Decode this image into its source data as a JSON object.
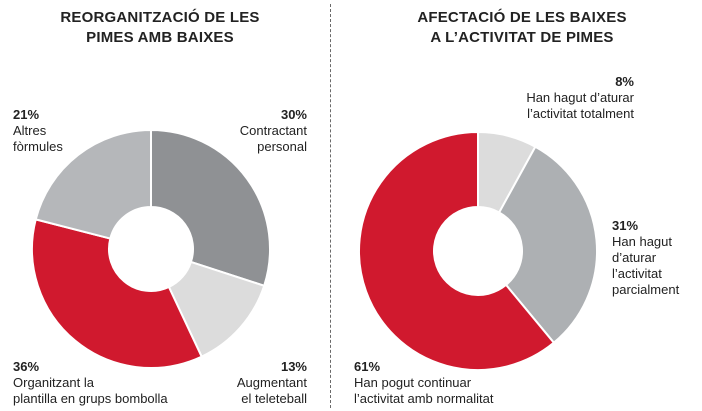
{
  "chart_data": [
    {
      "type": "pie",
      "variant": "donut",
      "title_lines": [
        "REORGANITZACIÓ DE LES",
        "PIMES AMB BAIXES"
      ],
      "slices": [
        {
          "label_lines": [
            "Contractant",
            "personal"
          ],
          "value": 30,
          "pct_label": "30%",
          "color": "#8f9194"
        },
        {
          "label_lines": [
            "Augmentant",
            "el teleteball"
          ],
          "value": 13,
          "pct_label": "13%",
          "color": "#dcdcdc"
        },
        {
          "label_lines": [
            "Organitzant la",
            "plantilla en grups bombolla"
          ],
          "value": 36,
          "pct_label": "36%",
          "color": "#d0192e"
        },
        {
          "label_lines": [
            "Altres",
            "fòrmules"
          ],
          "value": 21,
          "pct_label": "21%",
          "color": "#b5b7ba"
        }
      ]
    },
    {
      "type": "pie",
      "variant": "donut",
      "title_lines": [
        "AFECTACIÓ DE LES BAIXES",
        "A L’ACTIVITAT DE PIMES"
      ],
      "slices": [
        {
          "label_lines": [
            "Han hagut d’aturar",
            "l’activitat totalment"
          ],
          "value": 8,
          "pct_label": "8%",
          "color": "#dcdcdc"
        },
        {
          "label_lines": [
            "Han hagut",
            "d’aturar",
            "l’activitat",
            "parcialment"
          ],
          "value": 31,
          "pct_label": "31%",
          "color": "#adb0b3"
        },
        {
          "label_lines": [
            "Han pogut continuar",
            "l’activitat amb normalitat"
          ],
          "value": 61,
          "pct_label": "61%",
          "color": "#d0192e"
        }
      ]
    }
  ]
}
